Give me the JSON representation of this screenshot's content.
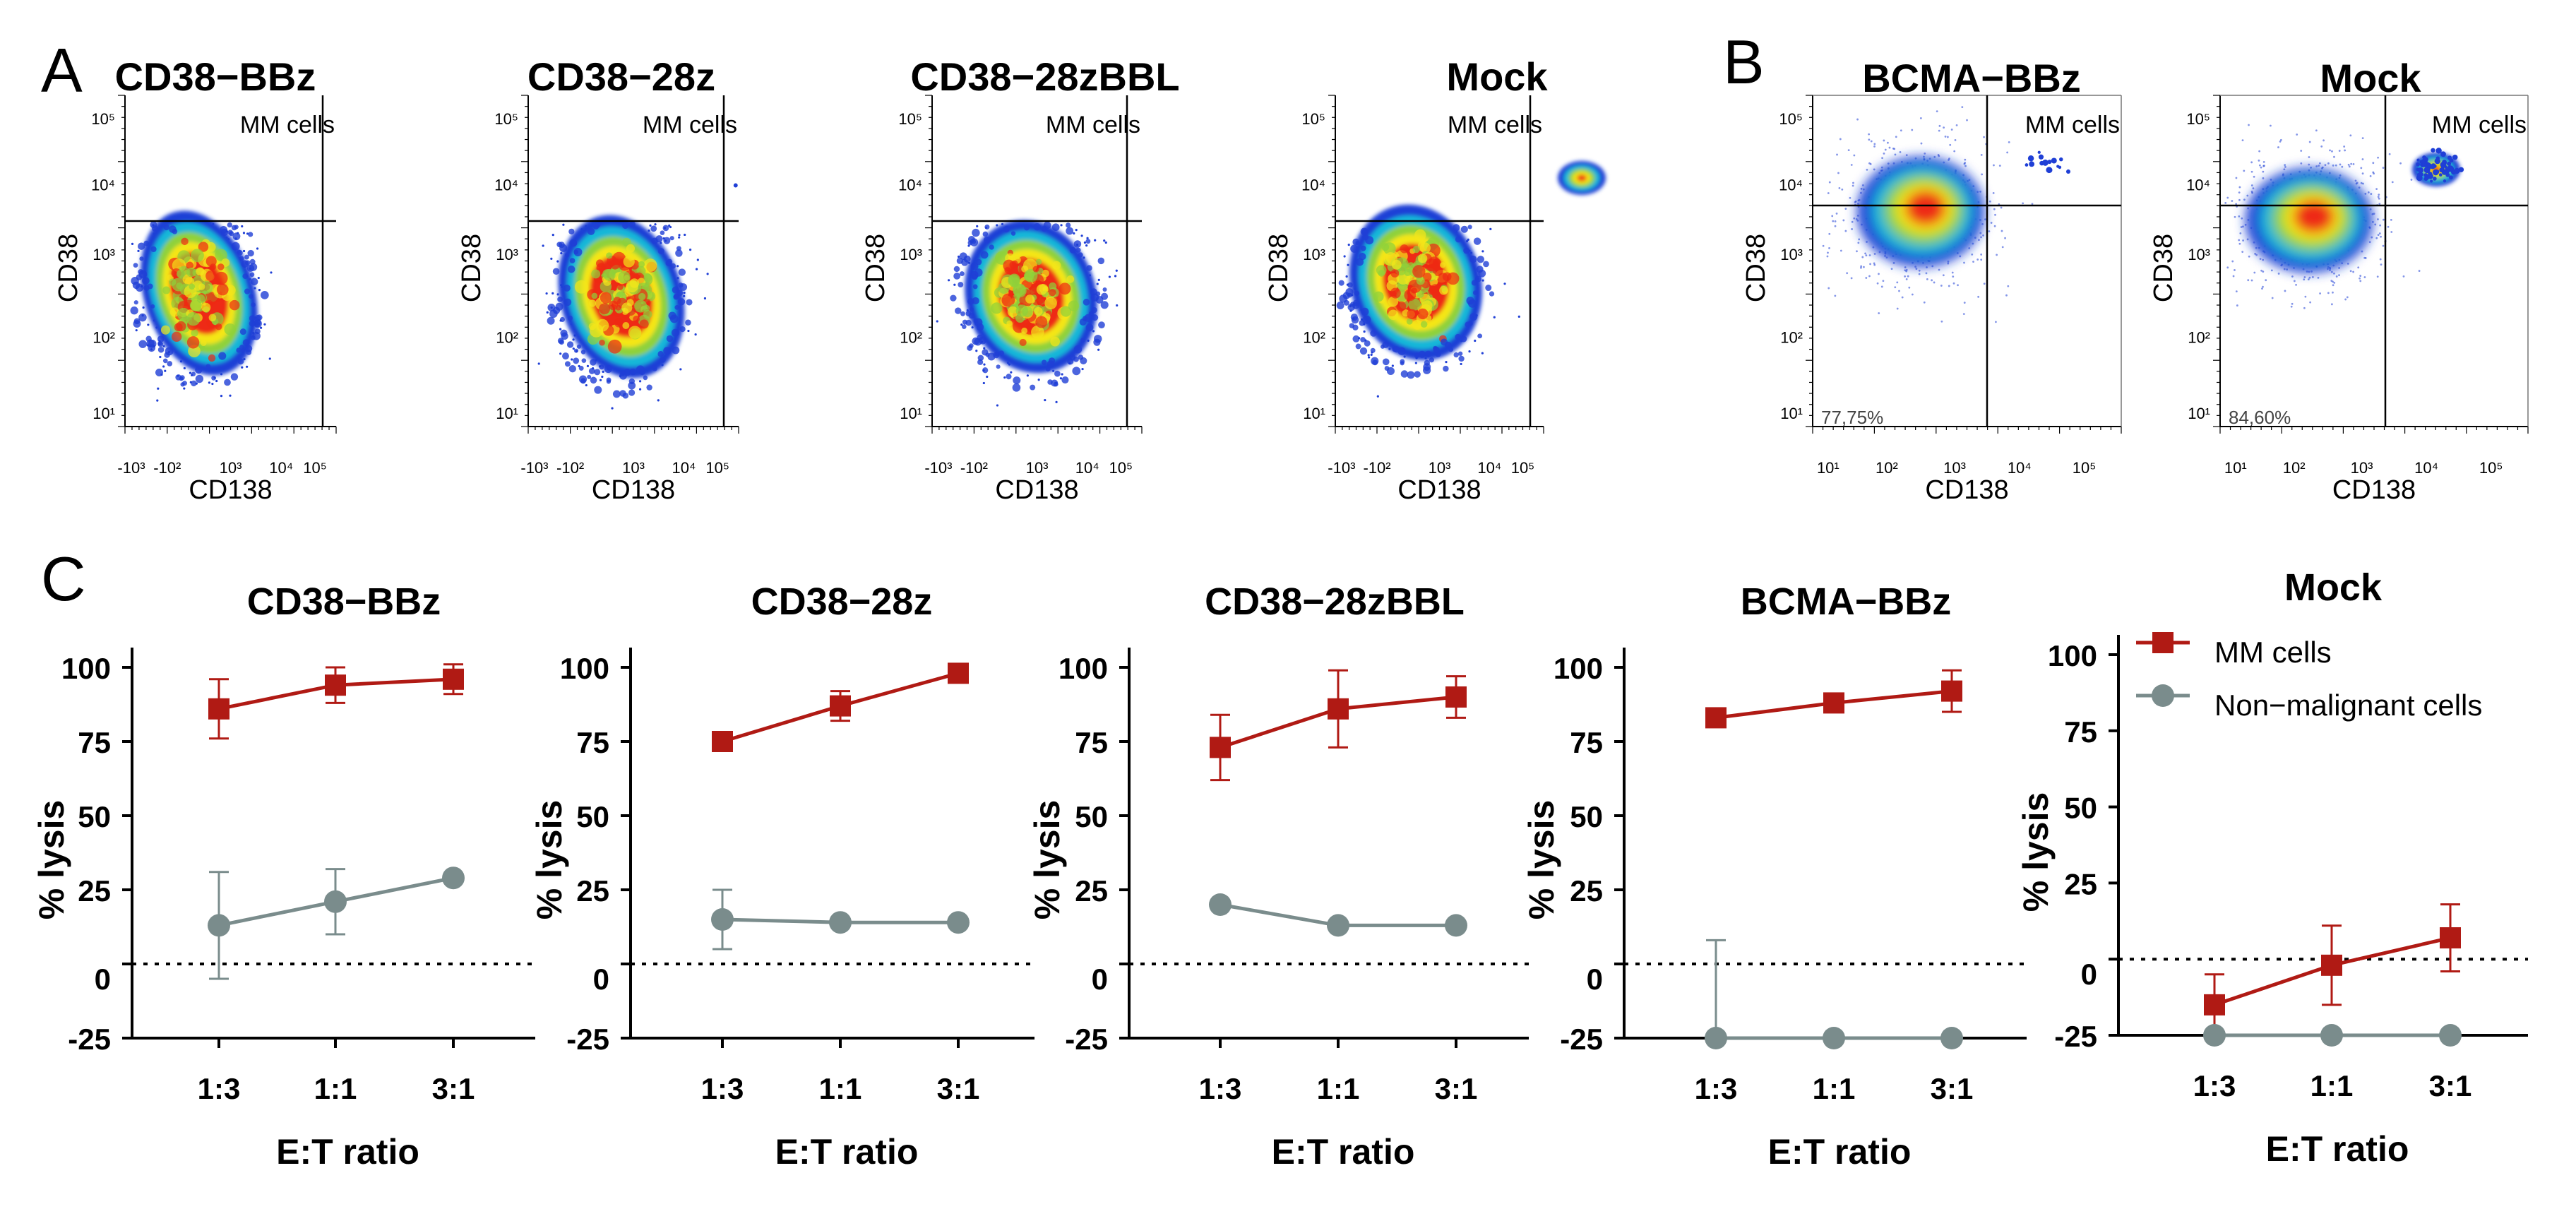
{
  "panel_letters": {
    "a": "A",
    "b": "B",
    "c": "C"
  },
  "colors": {
    "mm": "#b01a14",
    "normal": "#7a8c8c",
    "axis": "#000000",
    "density_low": "#1f3fd6",
    "density_mid1": "#19b7d8",
    "density_mid2": "#8fd13a",
    "density_mid3": "#f4e619",
    "density_high": "#ee2a12"
  },
  "flow_common": {
    "x_label": "CD138",
    "y_label": "CD38",
    "gate_label": "MM cells",
    "a_x_ticks": [
      "-10³",
      "-10²",
      "10³",
      "10⁴",
      "10⁵"
    ],
    "a_y_ticks": [
      "10⁵",
      "10⁴",
      "10³",
      "10²",
      "10¹"
    ],
    "b_x_ticks": [
      "10¹",
      "10²",
      "10³",
      "10⁴",
      "10⁵"
    ],
    "b_y_ticks": [
      "10⁵",
      "10⁴",
      "10³",
      "10²",
      "10¹"
    ]
  },
  "flow_plots": [
    {
      "id": "a1",
      "panel": "A",
      "title": "CD38−BBz",
      "quadrant_text": ""
    },
    {
      "id": "a2",
      "panel": "A",
      "title": "CD38−28z",
      "quadrant_text": ""
    },
    {
      "id": "a3",
      "panel": "A",
      "title": "CD38−28zBBL",
      "quadrant_text": ""
    },
    {
      "id": "a4",
      "panel": "A",
      "title": "Mock",
      "quadrant_text": ""
    },
    {
      "id": "b1",
      "panel": "B",
      "title": "BCMA−BBz",
      "quadrant_text": "77,75%"
    },
    {
      "id": "b2",
      "panel": "B",
      "title": "Mock",
      "quadrant_text": "84,60%"
    }
  ],
  "chart_data": [
    {
      "type": "line",
      "title": "CD38−BBz",
      "categories": [
        "1:3",
        "1:1",
        "3:1"
      ],
      "xlabel": "E:T ratio",
      "ylabel": "% lysis",
      "y_ticks": [
        100,
        75,
        50,
        25,
        0,
        -25
      ],
      "ylim": [
        -25,
        100
      ],
      "reference_line": 0,
      "series": [
        {
          "name": "MM cells",
          "values": [
            86,
            94,
            96
          ],
          "errors": [
            10,
            6,
            5
          ]
        },
        {
          "name": "Non-malignant cells",
          "values": [
            13,
            21,
            29
          ],
          "errors": [
            18,
            11,
            0
          ]
        }
      ]
    },
    {
      "type": "line",
      "title": "CD38−28z",
      "categories": [
        "1:3",
        "1:1",
        "3:1"
      ],
      "xlabel": "E:T ratio",
      "ylabel": "% lysis",
      "y_ticks": [
        100,
        75,
        50,
        25,
        0,
        -25
      ],
      "ylim": [
        -25,
        100
      ],
      "reference_line": 0,
      "series": [
        {
          "name": "MM cells",
          "values": [
            75,
            87,
            98
          ],
          "errors": [
            3,
            5,
            0
          ]
        },
        {
          "name": "Non-malignant cells",
          "values": [
            15,
            14,
            14
          ],
          "errors": [
            10,
            0,
            0
          ]
        }
      ]
    },
    {
      "type": "line",
      "title": "CD38−28zBBL",
      "categories": [
        "1:3",
        "1:1",
        "3:1"
      ],
      "xlabel": "E:T ratio",
      "ylabel": "% lysis",
      "y_ticks": [
        100,
        75,
        50,
        25,
        0,
        -25
      ],
      "ylim": [
        -25,
        100
      ],
      "reference_line": 0,
      "series": [
        {
          "name": "MM cells",
          "values": [
            73,
            86,
            90
          ],
          "errors": [
            11,
            13,
            7
          ]
        },
        {
          "name": "Non-malignant cells",
          "values": [
            20,
            13,
            13
          ],
          "errors": [
            0,
            0,
            0
          ]
        }
      ]
    },
    {
      "type": "line",
      "title": "BCMA−BBz",
      "categories": [
        "1:3",
        "1:1",
        "3:1"
      ],
      "xlabel": "E:T ratio",
      "ylabel": "% lysis",
      "y_ticks": [
        100,
        75,
        50,
        25,
        0,
        -25
      ],
      "ylim": [
        -25,
        100
      ],
      "reference_line": 0,
      "series": [
        {
          "name": "MM cells",
          "values": [
            83,
            88,
            92
          ],
          "errors": [
            3,
            2,
            7
          ]
        },
        {
          "name": "Non-malignant cells",
          "values": [
            -25,
            -25,
            -25
          ],
          "errors": [
            33,
            0,
            0
          ]
        }
      ]
    },
    {
      "type": "line",
      "title": "Mock",
      "categories": [
        "1:3",
        "1:1",
        "3:1"
      ],
      "xlabel": "E:T ratio",
      "ylabel": "% lysis",
      "y_ticks": [
        100,
        75,
        50,
        25,
        0,
        -25
      ],
      "ylim": [
        -25,
        100
      ],
      "reference_line": 0,
      "legend": {
        "placement": "top-right",
        "entries": [
          "MM cells",
          "Non−malignant cells"
        ]
      },
      "series": [
        {
          "name": "MM cells",
          "values": [
            -15,
            -2,
            7
          ],
          "errors": [
            10,
            13,
            11
          ]
        },
        {
          "name": "Non-malignant cells",
          "values": [
            -25,
            -25,
            -25
          ],
          "errors": [
            0,
            0,
            0
          ]
        }
      ]
    }
  ]
}
